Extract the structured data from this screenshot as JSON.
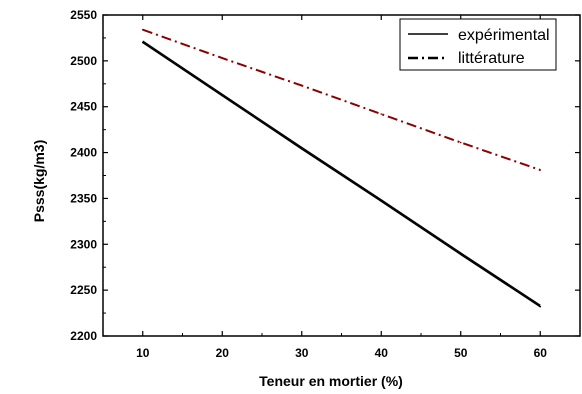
{
  "chart_data": {
    "type": "line",
    "xlabel": "Teneur en mortier (%)",
    "ylabel": "Psss(kg/m3)",
    "xlim": [
      5,
      65
    ],
    "ylim": [
      2200,
      2550
    ],
    "xticks": [
      10,
      20,
      30,
      40,
      50,
      60
    ],
    "yticks": [
      2200,
      2250,
      2300,
      2350,
      2400,
      2450,
      2500,
      2550
    ],
    "grid": false,
    "legend_position": "top-right",
    "series": [
      {
        "name": "expérimental",
        "color": "#000000",
        "style": "solid",
        "x": [
          10,
          20,
          30,
          40,
          50,
          60
        ],
        "y": [
          2520,
          2462,
          2404,
          2347,
          2289,
          2232
        ]
      },
      {
        "name": "littérature",
        "color": "#8b0000",
        "style": "dash-dot",
        "x": [
          10,
          20,
          30,
          40,
          50,
          60
        ],
        "y": [
          2534,
          2503,
          2473,
          2442,
          2411,
          2381
        ]
      }
    ]
  }
}
